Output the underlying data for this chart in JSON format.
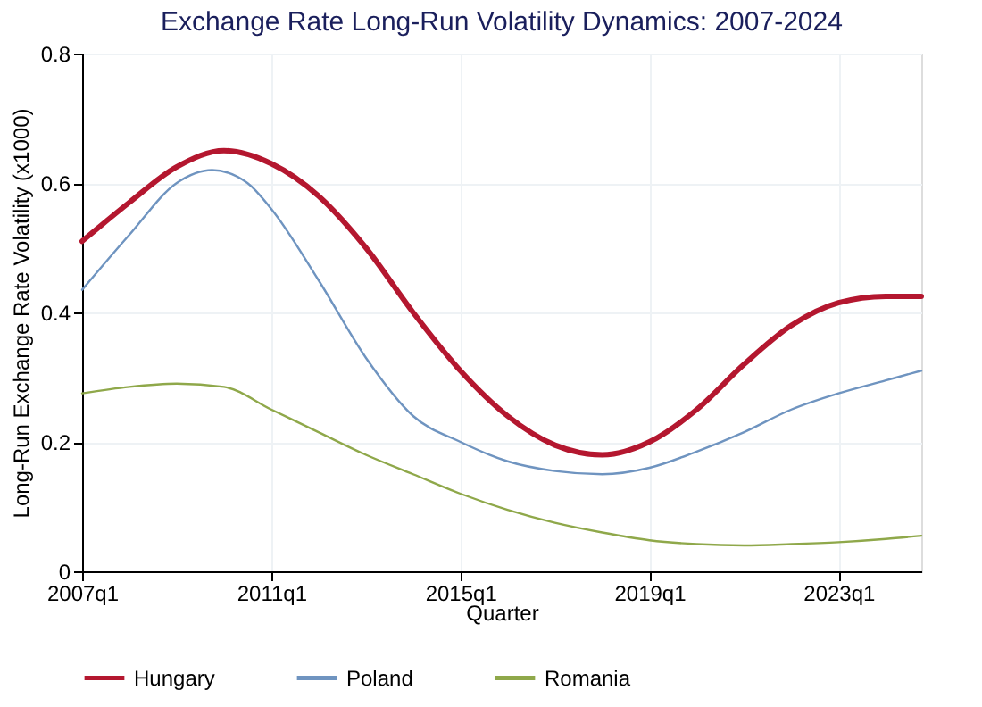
{
  "chart_data": {
    "type": "line",
    "title": "Exchange Rate Long-Run Volatility Dynamics: 2007-2024",
    "xlabel": "Quarter",
    "ylabel": "Long-Run Exchange Rate Volatility (x1000)",
    "x": [
      "2007-01",
      "2008-01",
      "2009-01",
      "2010-01",
      "2011-01",
      "2012-01",
      "2013-01",
      "2014-01",
      "2015-01",
      "2016-01",
      "2017-01",
      "2018-01",
      "2019-01",
      "2020-01",
      "2021-01",
      "2022-01",
      "2023-01",
      "2024-01",
      "2024-10"
    ],
    "series": [
      {
        "name": "Hungary",
        "color": "#b4172f",
        "values": [
          0.51,
          0.57,
          0.625,
          0.65,
          0.63,
          0.58,
          0.5,
          0.4,
          0.31,
          0.24,
          0.195,
          0.18,
          0.2,
          0.25,
          0.32,
          0.38,
          0.415,
          0.425,
          0.425
        ]
      },
      {
        "name": "Poland",
        "color": "#6f94c0",
        "x": [
          "2007-01",
          "2008-01",
          "2009-01",
          "2009-10",
          "2010-07",
          "2011-01",
          "2012-01",
          "2013-01",
          "2014-01",
          "2015-01",
          "2016-01",
          "2017-01",
          "2018-01",
          "2019-01",
          "2020-01",
          "2021-01",
          "2022-01",
          "2023-01",
          "2024-01",
          "2024-10"
        ],
        "values": [
          0.435,
          0.52,
          0.6,
          0.62,
          0.6,
          0.56,
          0.45,
          0.33,
          0.24,
          0.2,
          0.17,
          0.155,
          0.15,
          0.16,
          0.185,
          0.215,
          0.25,
          0.275,
          0.295,
          0.31
        ]
      },
      {
        "name": "Romania",
        "color": "#8fa84a",
        "values": [
          0.275,
          0.285,
          0.29,
          0.285,
          0.25,
          0.215,
          0.18,
          0.15,
          0.12,
          0.095,
          0.075,
          0.06,
          0.048,
          0.042,
          0.04,
          0.042,
          0.045,
          0.05,
          0.055
        ]
      }
    ],
    "xlim": [
      "2007-01",
      "2024-10"
    ],
    "xticks": [
      {
        "value": "2007-01",
        "label": "2007q1"
      },
      {
        "value": "2011-01",
        "label": "2011q1"
      },
      {
        "value": "2015-01",
        "label": "2015q1"
      },
      {
        "value": "2019-01",
        "label": "2019q1"
      },
      {
        "value": "2023-01",
        "label": "2023q1"
      }
    ],
    "ylim": [
      0,
      0.8
    ],
    "yticks": [
      0,
      0.2,
      0.4,
      0.6,
      0.8
    ],
    "grid": true,
    "legend": "bottom",
    "marker": "none",
    "line_style": "solid"
  }
}
